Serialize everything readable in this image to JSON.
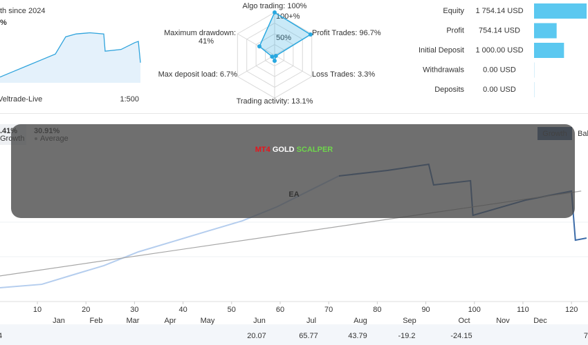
{
  "account": {
    "growth_caption": "th since 2024",
    "growth_value": "%",
    "mini_chart": {
      "x": [
        0,
        20,
        40,
        60,
        80,
        95,
        110,
        130,
        150,
        152,
        175,
        195,
        200,
        203
      ],
      "values": [
        10,
        20,
        30,
        40,
        50,
        80,
        85,
        87,
        85,
        55,
        58,
        70,
        72,
        35
      ],
      "xlim": [
        0,
        205
      ],
      "ylim": [
        0,
        120
      ],
      "color": "#2ea3dc"
    },
    "broker": "Veltrade-Live",
    "leverage": "1:500"
  },
  "radar": {
    "rlim": [
      0,
      100
    ],
    "color": "#29a8e0",
    "axes": [
      {
        "label": "Algo trading: 100%",
        "value": 100
      },
      {
        "label": "Profit Trades: 96.7%",
        "value": 96.7
      },
      {
        "label": "Loss Trades: 3.3%",
        "value": 3.3
      },
      {
        "label": "Trading activity: 13.1%",
        "value": 13.1
      },
      {
        "label": "Max deposit load: 6.7%",
        "value": 6.7
      },
      {
        "label": "Maximum drawdown:\n41%",
        "value": 41
      }
    ],
    "rings": [
      {
        "value": 100,
        "label": "100+%"
      },
      {
        "value": 50,
        "label": "50%"
      }
    ]
  },
  "stats": {
    "color": "#5bc8f0",
    "rows": [
      {
        "label": "Equity",
        "value": "1 754.14 USD",
        "amount": 1754.14
      },
      {
        "label": "Profit",
        "value": "754.14 USD",
        "amount": 754.14
      },
      {
        "label": "Initial Deposit",
        "value": "1 000.00 USD",
        "amount": 1000
      },
      {
        "label": "Withdrawals",
        "value": "0.00 USD",
        "amount": 0
      },
      {
        "label": "Deposits",
        "value": "0.00 USD",
        "amount": 0
      }
    ]
  },
  "growth_chart": {
    "type": "line",
    "tabs": [
      "Growth",
      "Bal"
    ],
    "summary": [
      {
        "value": ".41%",
        "label": "Growth"
      },
      {
        "value": "30.91%",
        "label": "Average"
      }
    ],
    "xlim": [
      2.3,
      123.4
    ],
    "ylim": [
      0,
      100
    ],
    "xticks": [
      10,
      20,
      30,
      40,
      50,
      60,
      70,
      80,
      90,
      100,
      110,
      120
    ],
    "series": [
      {
        "color": "#b4cdee",
        "x": [
          2.3,
          10.9,
          16.6,
          23.7,
          30.8,
          37.9,
          45.0,
          52.2,
          59.3,
          66.4,
          72.1
        ],
        "values": [
          7.2,
          9.0,
          13.4,
          18.8,
          26.0,
          31.4,
          36.8,
          42.2,
          49.5,
          58.5,
          65.7
        ]
      },
      {
        "color": "#3b6ba8",
        "x": [
          72.1,
          82.1,
          90.6,
          91.6,
          99.2,
          99.7,
          110.6,
          120.0,
          120.8,
          123.1
        ],
        "values": [
          65.7,
          68.6,
          71.8,
          61.0,
          63.2,
          45.1,
          53.1,
          57.8,
          32.1,
          33.2
        ]
      },
      {
        "color": "#a6a6a6",
        "x": [
          2.3,
          122.0
        ],
        "values": [
          13.4,
          57.8
        ]
      }
    ],
    "months": [
      "Jan",
      "Feb",
      "Mar",
      "Apr",
      "May",
      "Jun",
      "Jul",
      "Aug",
      "Sep",
      "Oct",
      "Nov",
      "Dec"
    ],
    "monthly_returns": {
      "first": "4",
      "values": [
        null,
        null,
        null,
        null,
        null,
        20.07,
        65.77,
        43.79,
        -19.2,
        -24.15,
        null,
        null
      ],
      "last": "7"
    }
  },
  "banner": {
    "line1": [
      {
        "text": "MT4",
        "color": "#e8141b"
      },
      {
        "text": "GOLD",
        "color": "#ffffff"
      },
      {
        "text": "SCALPER",
        "color": "#6fd64c"
      }
    ],
    "line2": "EA"
  }
}
